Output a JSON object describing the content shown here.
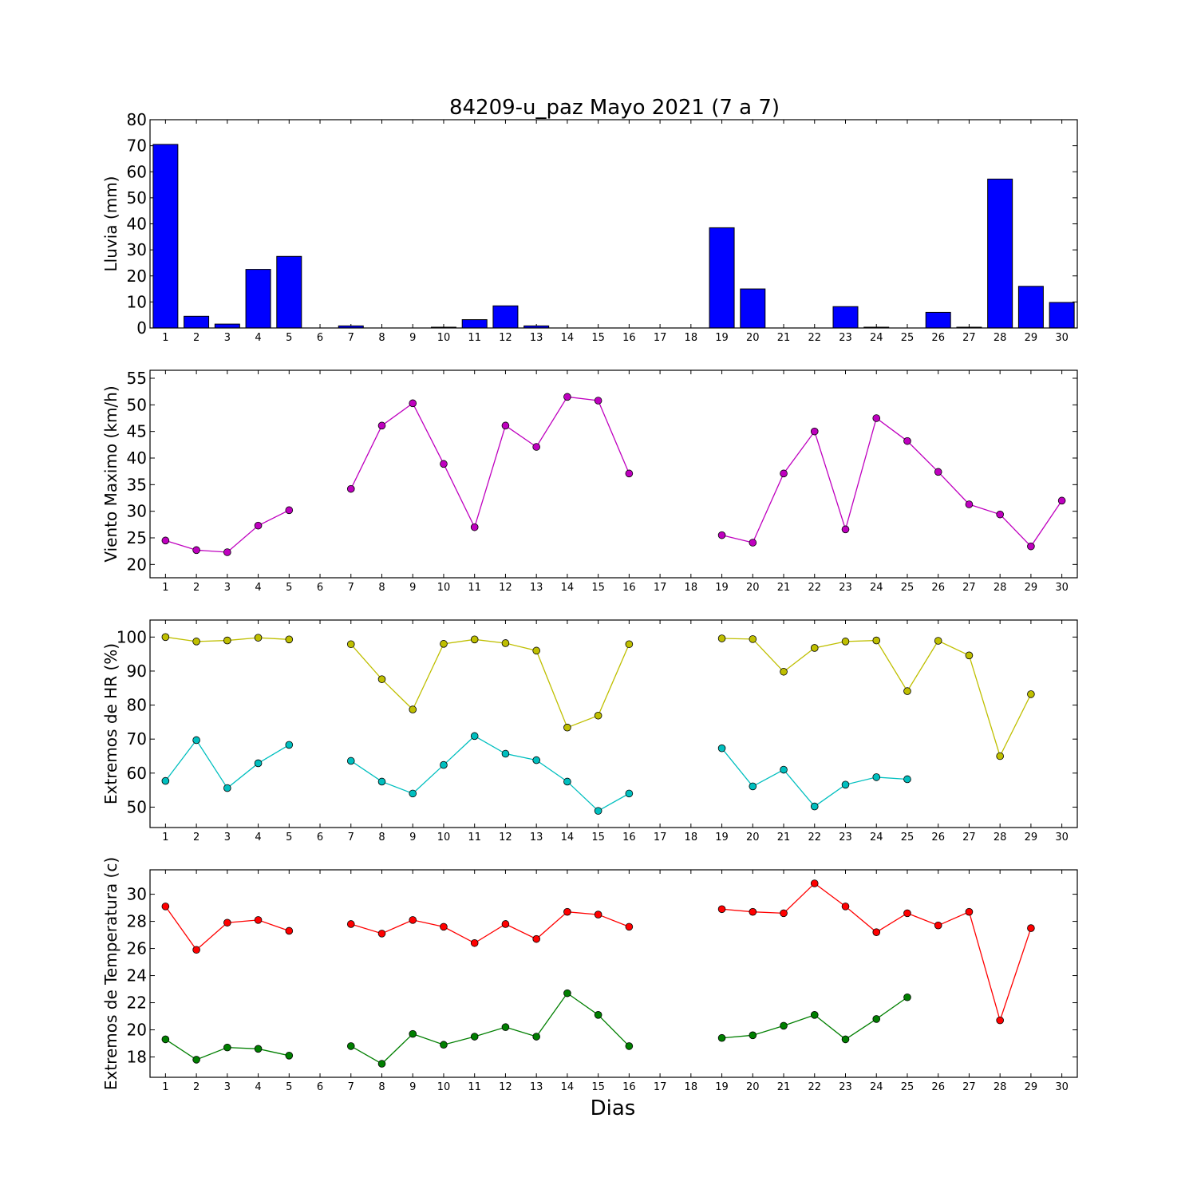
{
  "chart_data": [
    {
      "type": "bar",
      "title": "84209-u_paz Mayo 2021  (7 a 7)",
      "ylabel": "Lluvia (mm)",
      "xlabel": "",
      "categories": [
        1,
        2,
        3,
        4,
        5,
        6,
        7,
        8,
        9,
        10,
        11,
        12,
        13,
        14,
        15,
        16,
        17,
        18,
        19,
        20,
        21,
        22,
        23,
        24,
        25,
        26,
        27,
        28,
        29,
        30
      ],
      "values": [
        70.5,
        4.5,
        1.5,
        22.5,
        27.5,
        0,
        0.8,
        0,
        0,
        0.3,
        3.2,
        8.5,
        0.8,
        0,
        0,
        0,
        0,
        0,
        38.5,
        15,
        0,
        0,
        8.2,
        0.3,
        0,
        6,
        0.3,
        57.2,
        16,
        9.8
      ],
      "ylim": [
        0,
        80
      ],
      "yticks": [
        0,
        10,
        20,
        30,
        40,
        50,
        60,
        70,
        80
      ],
      "colors": {
        "bar": "#0000ff"
      },
      "grid": false
    },
    {
      "type": "line",
      "ylabel": "Viento Maximo (km/h)",
      "xlabel": "",
      "x": [
        1,
        2,
        3,
        4,
        5,
        6,
        7,
        8,
        9,
        10,
        11,
        12,
        13,
        14,
        15,
        16,
        17,
        18,
        19,
        20,
        21,
        22,
        23,
        24,
        25,
        26,
        27,
        28,
        29,
        30
      ],
      "series": [
        {
          "values": [
            24.5,
            22.7,
            22.3,
            27.3,
            30.2,
            null,
            34.2,
            46.1,
            50.3,
            38.9,
            27.0,
            46.1,
            42.1,
            51.5,
            50.8,
            37.1,
            null,
            null,
            25.5,
            24.1,
            37.1,
            45.0,
            26.6,
            47.5,
            43.2,
            37.4,
            31.3,
            29.4,
            23.4,
            32.0
          ],
          "color": "#bf00bf"
        }
      ],
      "ylim": [
        17.5,
        56.5
      ],
      "yticks": [
        20,
        25,
        30,
        35,
        40,
        45,
        50,
        55
      ],
      "grid": false
    },
    {
      "type": "line",
      "ylabel": "Extremos de HR (%)",
      "xlabel": "",
      "x": [
        1,
        2,
        3,
        4,
        5,
        6,
        7,
        8,
        9,
        10,
        11,
        12,
        13,
        14,
        15,
        16,
        17,
        18,
        19,
        20,
        21,
        22,
        23,
        24,
        25,
        26,
        27,
        28,
        29,
        30
      ],
      "series": [
        {
          "values": [
            100,
            98.7,
            99.0,
            99.8,
            99.3,
            null,
            97.9,
            87.6,
            78.7,
            98.0,
            99.3,
            98.2,
            96.0,
            73.4,
            76.9,
            97.9,
            null,
            null,
            99.6,
            99.4,
            89.8,
            96.8,
            98.7,
            99.0,
            84.1,
            98.9,
            94.6,
            65.0,
            83.2,
            null
          ],
          "color": "#bfbf00"
        },
        {
          "values": [
            57.7,
            69.7,
            55.6,
            62.9,
            68.3,
            null,
            63.6,
            57.5,
            54.0,
            62.4,
            70.9,
            65.7,
            63.8,
            57.5,
            48.9,
            54.0,
            null,
            null,
            67.3,
            56.1,
            61.0,
            50.2,
            56.6,
            58.8,
            58.2,
            null,
            null,
            null,
            null,
            null
          ],
          "color": "#00bfbf"
        }
      ],
      "ylim": [
        44,
        105
      ],
      "yticks": [
        50,
        60,
        70,
        80,
        90,
        100
      ],
      "grid": false
    },
    {
      "type": "line",
      "ylabel": "Extremos de Temperatura (c)",
      "xlabel": "Dias",
      "x": [
        1,
        2,
        3,
        4,
        5,
        6,
        7,
        8,
        9,
        10,
        11,
        12,
        13,
        14,
        15,
        16,
        17,
        18,
        19,
        20,
        21,
        22,
        23,
        24,
        25,
        26,
        27,
        28,
        29,
        30
      ],
      "series": [
        {
          "values": [
            29.1,
            25.9,
            27.9,
            28.1,
            27.3,
            null,
            27.8,
            27.1,
            28.1,
            27.6,
            26.4,
            27.8,
            26.7,
            28.7,
            28.5,
            27.6,
            null,
            null,
            28.9,
            28.7,
            28.6,
            30.8,
            29.1,
            27.2,
            28.6,
            27.7,
            28.7,
            20.7,
            27.5,
            null
          ],
          "color": "#ff0000"
        },
        {
          "values": [
            19.3,
            17.8,
            18.7,
            18.6,
            18.1,
            null,
            18.8,
            17.5,
            19.7,
            18.9,
            19.5,
            20.2,
            19.5,
            22.7,
            21.1,
            18.8,
            null,
            null,
            19.4,
            19.6,
            20.3,
            21.1,
            19.3,
            20.8,
            22.4,
            null,
            null,
            null,
            null,
            null
          ],
          "color": "#007f00"
        }
      ],
      "ylim": [
        16.5,
        31.8
      ],
      "yticks": [
        18,
        20,
        22,
        24,
        26,
        28,
        30
      ],
      "grid": false
    }
  ]
}
